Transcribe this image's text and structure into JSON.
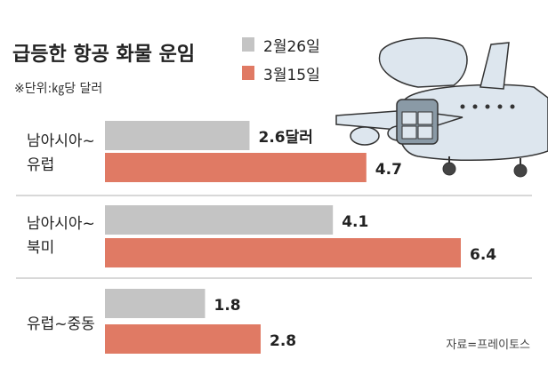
{
  "title": "급등한 항공 화물 운임",
  "subtitle": "※단위:㎏당 달러",
  "source": "자료=프레이토스",
  "colors": {
    "series_1": "#c4c4c4",
    "series_2": "#e07a64",
    "plane_fill": "#dde6ee",
    "plane_stroke": "#333333",
    "divider": "#b0b0b0"
  },
  "chart_data": {
    "type": "bar",
    "orientation": "horizontal",
    "categories": [
      [
        "남아시아~",
        "유럽"
      ],
      [
        "남아시아~",
        "북미"
      ],
      [
        "유럽~중동"
      ]
    ],
    "series": [
      {
        "name": "2월26일",
        "values": [
          2.6,
          4.1,
          1.8
        ],
        "labels": [
          "2.6달러",
          "4.1",
          "1.8"
        ]
      },
      {
        "name": "3월15일",
        "values": [
          4.7,
          6.4,
          2.8
        ],
        "labels": [
          "4.7",
          "6.4",
          "2.8"
        ]
      }
    ],
    "unit": "㎏당 달러",
    "xlim": [
      0,
      6.4
    ],
    "grid": false,
    "legend_position": "top-center"
  }
}
